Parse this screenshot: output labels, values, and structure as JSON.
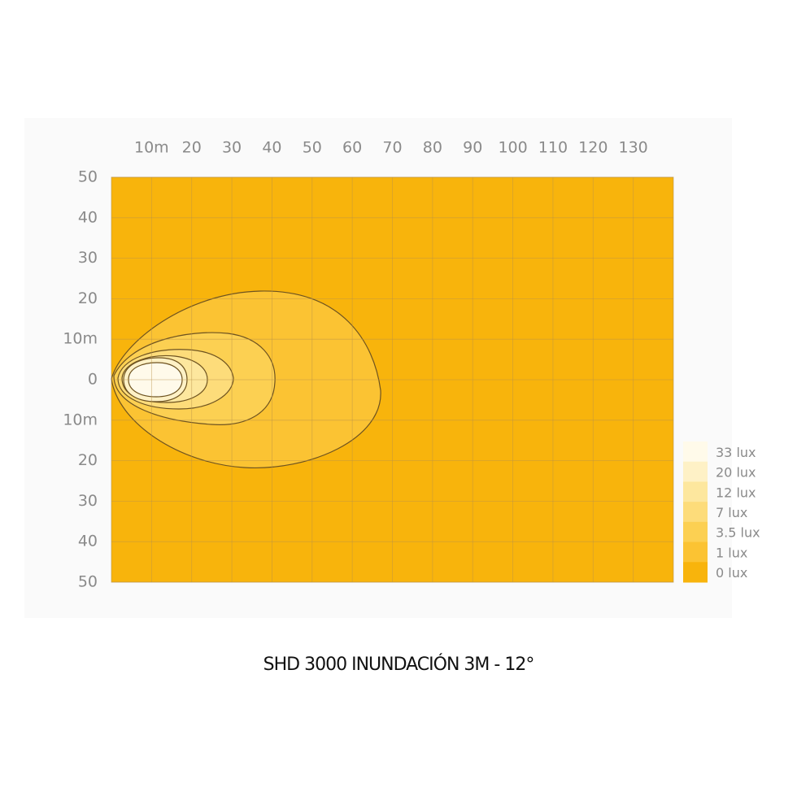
{
  "chart_data": {
    "type": "isolux",
    "title": "SHD 3000 INUNDACIÓN 3M - 12°",
    "xlim": [
      0,
      140
    ],
    "ylim": [
      -50,
      50
    ],
    "xticks": [
      {
        "value": 10,
        "label": "10m"
      },
      20,
      30,
      40,
      50,
      60,
      70,
      80,
      90,
      100,
      110,
      120,
      130
    ],
    "yticks": [
      50,
      40,
      30,
      20,
      {
        "value": 10,
        "label": "10m"
      },
      0,
      {
        "value": -10,
        "label": "10m"
      },
      {
        "value": -20,
        "label": "20"
      },
      {
        "value": -30,
        "label": "30"
      },
      {
        "value": -40,
        "label": "40"
      },
      {
        "value": -50,
        "label": "50"
      }
    ],
    "grid": true,
    "levels": [
      {
        "value": 33,
        "label": "33 lux"
      },
      {
        "value": 20,
        "label": "20 lux"
      },
      {
        "value": 12,
        "label": "12 lux"
      },
      {
        "value": 7,
        "label": "7 lux"
      },
      {
        "value": 3.5,
        "label": "3.5 lux"
      },
      {
        "value": 1,
        "label": "1 lux"
      },
      {
        "value": 0,
        "label": "0 lux"
      }
    ],
    "level_colors": [
      "#fffaea",
      "#fef1c6",
      "#fde79e",
      "#fddc7a",
      "#fcd052",
      "#fbc333",
      "#f8b40c"
    ]
  }
}
